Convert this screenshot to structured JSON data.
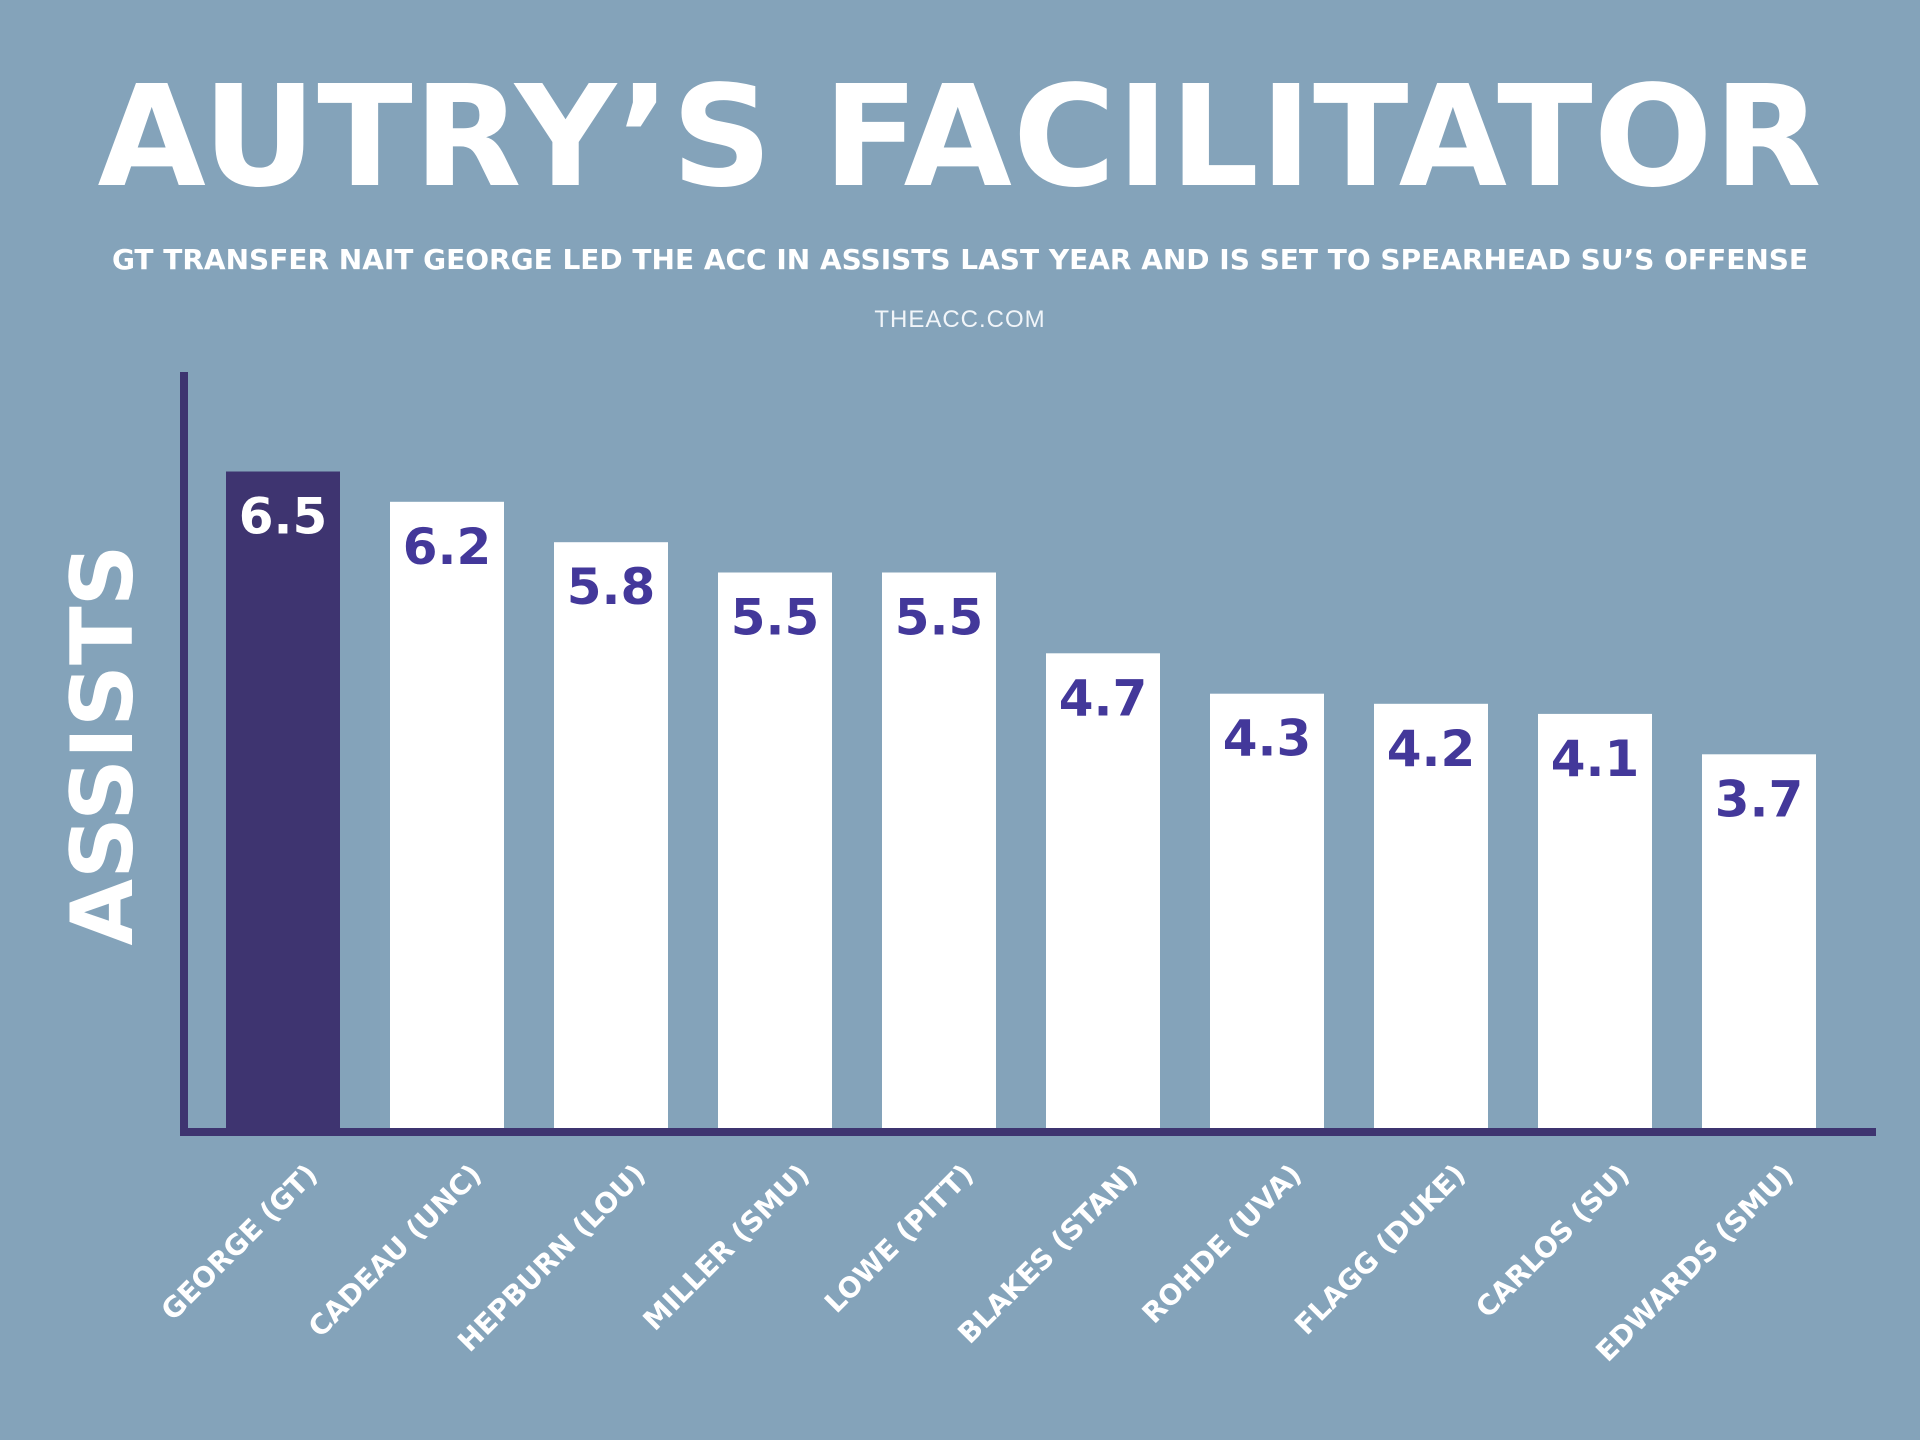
{
  "header": {
    "title": "AUTRY’S FACILITATOR",
    "subtitle": "GT TRANSFER NAIT GEORGE LED THE ACC IN ASSISTS LAST YEAR AND IS SET TO SPEARHEAD SU’S OFFENSE",
    "source": "THEACC.COM"
  },
  "colors": {
    "background": "#84a3ba",
    "highlight_bar": "#3e3470",
    "bar": "#ffffff",
    "axis": "#3e3470",
    "value_text_on_white": "#43389a",
    "value_text_on_highlight": "#ffffff"
  },
  "chart_data": {
    "type": "bar",
    "ylabel": "ASSISTS",
    "xlabel": "",
    "categories": [
      "GEORGE (GT)",
      "CADEAU (UNC)",
      "HEPBURN (LOU)",
      "MILLER (SMU)",
      "LOWE (PITT)",
      "BLAKES (STAN)",
      "ROHDE (UVA)",
      "FLAGG (DUKE)",
      "CARLOS (SU)",
      "EDWARDS (SMU)"
    ],
    "values": [
      6.5,
      6.2,
      5.8,
      5.5,
      5.5,
      4.7,
      4.3,
      4.2,
      4.1,
      3.7
    ],
    "value_labels": [
      "6.5",
      "6.2",
      "5.8",
      "5.5",
      "5.5",
      "4.7",
      "4.3",
      "4.2",
      "4.1",
      "3.7"
    ],
    "highlight_index": 0,
    "ylim": [
      0,
      7
    ],
    "grid": false,
    "legend": "none"
  }
}
